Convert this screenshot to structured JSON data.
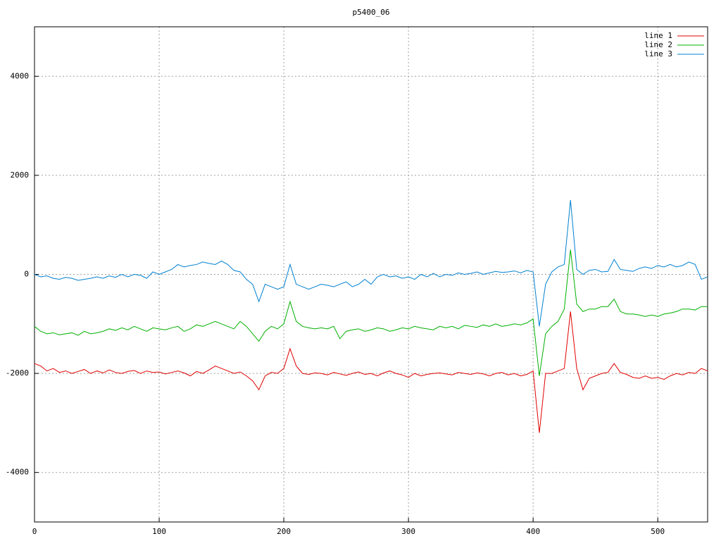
{
  "chart_data": {
    "type": "line",
    "title": "p5400_06",
    "x": [
      0,
      5,
      10,
      15,
      20,
      25,
      30,
      35,
      40,
      45,
      50,
      55,
      60,
      65,
      70,
      75,
      80,
      85,
      90,
      95,
      100,
      105,
      110,
      115,
      120,
      125,
      130,
      135,
      140,
      145,
      150,
      155,
      160,
      165,
      170,
      175,
      180,
      185,
      190,
      195,
      200,
      205,
      210,
      215,
      220,
      225,
      230,
      235,
      240,
      245,
      250,
      255,
      260,
      265,
      270,
      275,
      280,
      285,
      290,
      295,
      300,
      305,
      310,
      315,
      320,
      325,
      330,
      335,
      340,
      345,
      350,
      355,
      360,
      365,
      370,
      375,
      380,
      385,
      390,
      395,
      400,
      405,
      410,
      415,
      420,
      425,
      430,
      435,
      440,
      445,
      450,
      455,
      460,
      465,
      470,
      475,
      480,
      485,
      490,
      495,
      500,
      505,
      510,
      515,
      520,
      525,
      530,
      535,
      540
    ],
    "series": [
      {
        "name": "line 1",
        "color": "#e00000",
        "values": [
          -1800,
          -1850,
          -1950,
          -1900,
          -1980,
          -1950,
          -2000,
          -1960,
          -1920,
          -2000,
          -1950,
          -1990,
          -1930,
          -1980,
          -2000,
          -1960,
          -1940,
          -2000,
          -1950,
          -1980,
          -1970,
          -2010,
          -1980,
          -1950,
          -1990,
          -2050,
          -1960,
          -2000,
          -1930,
          -1850,
          -1900,
          -1950,
          -2000,
          -1970,
          -2050,
          -2150,
          -2330,
          -2050,
          -1980,
          -2000,
          -1900,
          -1500,
          -1850,
          -2000,
          -2020,
          -1990,
          -2000,
          -2030,
          -1980,
          -2010,
          -2040,
          -2000,
          -1970,
          -2020,
          -2000,
          -2050,
          -1990,
          -1950,
          -2000,
          -2030,
          -2080,
          -2000,
          -2050,
          -2020,
          -2000,
          -1990,
          -2010,
          -2030,
          -1980,
          -2000,
          -2020,
          -1990,
          -2010,
          -2050,
          -2000,
          -1980,
          -2030,
          -2000,
          -2050,
          -2020,
          -1950,
          -3200,
          -2000,
          -2000,
          -1950,
          -1900,
          -750,
          -1900,
          -2330,
          -2100,
          -2050,
          -2000,
          -1980,
          -1800,
          -1980,
          -2020,
          -2080,
          -2100,
          -2050,
          -2100,
          -2080,
          -2120,
          -2050,
          -2000,
          -2030,
          -1980,
          -2000,
          -1900,
          -1950
        ]
      },
      {
        "name": "line 2",
        "color": "#00b000",
        "values": [
          -1050,
          -1150,
          -1200,
          -1180,
          -1220,
          -1200,
          -1180,
          -1230,
          -1150,
          -1200,
          -1180,
          -1150,
          -1100,
          -1130,
          -1080,
          -1120,
          -1050,
          -1100,
          -1150,
          -1080,
          -1100,
          -1120,
          -1080,
          -1050,
          -1150,
          -1100,
          -1020,
          -1050,
          -1000,
          -950,
          -1000,
          -1050,
          -1100,
          -950,
          -1050,
          -1200,
          -1350,
          -1150,
          -1050,
          -1100,
          -1000,
          -550,
          -950,
          -1050,
          -1080,
          -1100,
          -1080,
          -1100,
          -1050,
          -1300,
          -1150,
          -1120,
          -1100,
          -1150,
          -1120,
          -1080,
          -1100,
          -1150,
          -1120,
          -1080,
          -1100,
          -1050,
          -1080,
          -1100,
          -1120,
          -1050,
          -1080,
          -1050,
          -1100,
          -1030,
          -1050,
          -1070,
          -1020,
          -1050,
          -1000,
          -1050,
          -1030,
          -1000,
          -1020,
          -980,
          -900,
          -2050,
          -1200,
          -1050,
          -950,
          -700,
          500,
          -600,
          -750,
          -700,
          -700,
          -650,
          -650,
          -500,
          -750,
          -800,
          -800,
          -820,
          -850,
          -820,
          -850,
          -800,
          -780,
          -750,
          -700,
          -700,
          -720,
          -650,
          -650
        ]
      },
      {
        "name": "line 3",
        "color": "#0080d0",
        "values": [
          0,
          -50,
          -30,
          -80,
          -100,
          -60,
          -80,
          -120,
          -100,
          -80,
          -50,
          -80,
          -30,
          -60,
          0,
          -50,
          0,
          -20,
          -80,
          50,
          0,
          50,
          100,
          200,
          150,
          180,
          200,
          250,
          220,
          200,
          270,
          200,
          80,
          50,
          -100,
          -200,
          -550,
          -200,
          -250,
          -300,
          -250,
          200,
          -200,
          -250,
          -300,
          -250,
          -200,
          -220,
          -250,
          -200,
          -150,
          -250,
          -200,
          -100,
          -200,
          -50,
          0,
          -50,
          -30,
          -80,
          -50,
          -100,
          0,
          -50,
          20,
          -50,
          0,
          -20,
          30,
          0,
          20,
          50,
          0,
          30,
          60,
          40,
          50,
          70,
          30,
          80,
          50,
          -1050,
          -200,
          50,
          150,
          200,
          1500,
          100,
          0,
          80,
          100,
          50,
          60,
          300,
          100,
          80,
          60,
          120,
          150,
          120,
          180,
          150,
          200,
          150,
          180,
          250,
          200,
          -100,
          -50
        ]
      }
    ],
    "xlim": [
      0,
      540
    ],
    "ylim": [
      -5000,
      5000
    ],
    "xticks": [
      0,
      100,
      200,
      300,
      400,
      500
    ],
    "yticks": [
      -4000,
      -2000,
      0,
      2000,
      4000
    ],
    "grid": true,
    "legend": "top-right"
  }
}
